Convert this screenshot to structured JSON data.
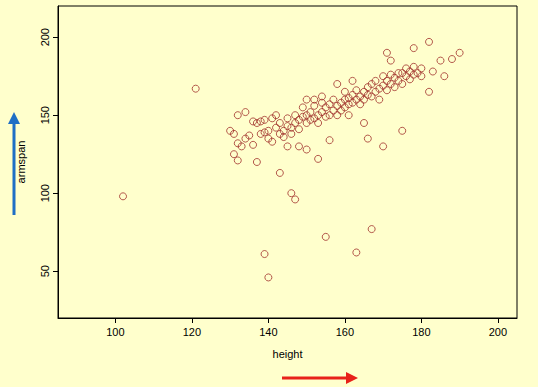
{
  "chart_data": {
    "type": "scatter",
    "x_label": "height",
    "y_label": "armspan",
    "color": "#a0302a",
    "marker": "open_circle",
    "grid": false,
    "xlim": [
      85,
      205
    ],
    "xticks": [
      100,
      120,
      140,
      160,
      180,
      200
    ],
    "ylim": [
      20,
      220
    ],
    "yticks": [
      50,
      100,
      150,
      200
    ],
    "x": [
      102,
      121,
      139,
      140,
      155,
      163,
      167,
      146,
      147,
      153,
      143,
      166,
      170,
      175,
      137,
      131,
      132,
      182,
      185,
      130,
      131,
      132,
      133,
      132,
      134,
      135,
      136,
      138,
      139,
      137,
      138,
      140,
      140,
      141,
      141,
      142,
      142,
      143,
      143,
      144,
      144,
      145,
      145,
      146,
      146,
      147,
      147,
      148,
      148,
      149,
      149,
      150,
      150,
      151,
      151,
      152,
      152,
      153,
      153,
      154,
      154,
      155,
      155,
      156,
      156,
      157,
      157,
      158,
      158,
      159,
      159,
      160,
      160,
      160,
      161,
      161,
      162,
      162,
      163,
      163,
      164,
      164,
      165,
      165,
      166,
      166,
      167,
      167,
      168,
      168,
      169,
      169,
      170,
      170,
      171,
      171,
      172,
      172,
      173,
      173,
      174,
      175,
      175,
      176,
      176,
      177,
      177,
      178,
      178,
      179,
      180,
      171,
      172,
      178,
      182,
      190,
      183,
      186,
      188,
      180,
      174,
      162,
      158,
      154,
      148,
      150,
      156,
      145,
      150,
      152,
      161,
      165,
      139,
      136,
      134
    ],
    "y": [
      98,
      167,
      61,
      46,
      72,
      62,
      77,
      100,
      96,
      122,
      113,
      135,
      130,
      140,
      120,
      125,
      121,
      165,
      185,
      140,
      138,
      132,
      130,
      150,
      135,
      137,
      131,
      138,
      139,
      145,
      146,
      140,
      135,
      133,
      148,
      142,
      150,
      138,
      145,
      140,
      136,
      143,
      148,
      142,
      138,
      145,
      150,
      147,
      141,
      149,
      155,
      150,
      145,
      152,
      147,
      148,
      156,
      150,
      145,
      152,
      158,
      155,
      149,
      150,
      157,
      153,
      160,
      156,
      150,
      158,
      153,
      160,
      155,
      165,
      161,
      157,
      163,
      158,
      160,
      166,
      162,
      157,
      165,
      160,
      163,
      168,
      162,
      170,
      165,
      172,
      160,
      167,
      169,
      175,
      172,
      166,
      170,
      176,
      168,
      174,
      172,
      177,
      170,
      175,
      180,
      178,
      173,
      176,
      181,
      177,
      180,
      190,
      185,
      193,
      197,
      190,
      178,
      175,
      186,
      175,
      177,
      172,
      170,
      162,
      130,
      128,
      134,
      130,
      160,
      160,
      150,
      145,
      147,
      146,
      152
    ]
  }
}
